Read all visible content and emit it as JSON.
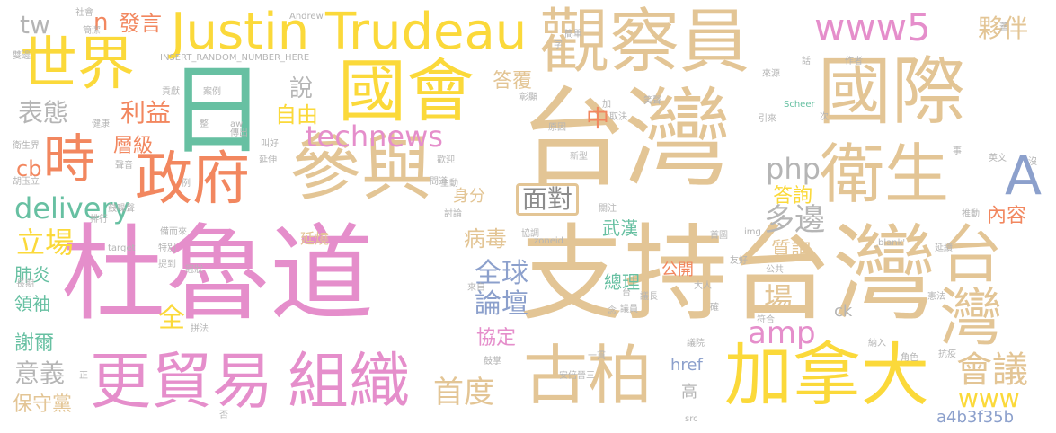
{
  "colors": {
    "pink": "#e58ecb",
    "tan": "#e3c595",
    "yellow": "#fbd93a",
    "green": "#67c0a2",
    "blue": "#8ca0cc",
    "orange": "#f2875f",
    "gray": "#b5b5b5"
  },
  "words": {
    "dulu_dao": "杜魯道",
    "zhichi_taiwan": "支持台灣",
    "taiwan_big": "台灣",
    "taiwan_right": "台灣",
    "guancha_yuan": "觀察員",
    "guoji": "國際",
    "canyu": "參與",
    "weisheng": "衛生",
    "guohui": "國會",
    "shijie": "世界",
    "zhengfu": "政府",
    "shi": "時",
    "ri": "日",
    "justin_trudeau": "Justin Trudeau",
    "www5": "www5",
    "huoban": "夥伴",
    "tw": "tw",
    "n": "n",
    "fayan": "發言",
    "gumao_yi": "更貿易",
    "zuzhi": "組織",
    "gubo": "古柏",
    "jianada": "加拿大",
    "huiyi": "會議",
    "a_big": "A",
    "technews": "technews",
    "delivery": "delivery",
    "php": "php",
    "duobian": "多邊",
    "mianDui": "面對",
    "ziyou": "自由",
    "zhong": "中",
    "shuo": "說",
    "biaotai": "表態",
    "liyi": "利益",
    "cengji": "層級",
    "cb": "cb",
    "lichang": "立場",
    "quanqiu": "全球",
    "luntan": "論壇",
    "shoudu": "首度",
    "amp": "amp",
    "chang": "場",
    "www": "www",
    "neirong": "內容",
    "dafu": "答覆",
    "xunwen": "質詢",
    "daxun": "答詢",
    "gongkai": "公開",
    "zongli": "總理",
    "xieding": "協定",
    "bingdu": "病毒",
    "yanshao": "延燒",
    "shenfen": "身分",
    "wuhan": "武漢",
    "quan": "全",
    "xieer": "謝爾",
    "yiyi": "意義",
    "baoshou_dang": "保守黨",
    "lingxiu": "領袖",
    "feiyan": "肺炎",
    "href": "href",
    "gao": "高",
    "ck": "ck",
    "a4b3f35b": "a4b3f35b",
    "insert_random": "INSERT_RANDOM_NUMBER_HERE",
    "andrew": "Andrew",
    "scheer": "Scheer",
    "target": "target",
    "zoneid": "zoneid",
    "blank": "_blank'",
    "src": "src",
    "img": "img",
    "aw": "aw",
    "hu_yuli": "胡玉立",
    "shuangbian": "雙邊",
    "weishengjie": "衛生界",
    "jiankang": "健康",
    "gongxian": "貢獻",
    "anli": "案例",
    "zheng": "整",
    "chuchu": "傳出",
    "jiaohao": "叫好",
    "shengyin": "聲音",
    "lihan": "例",
    "yanshen": "延伸",
    "paihang": "排行",
    "guzao_sheng": "鼓噪聲",
    "beierlai": "備而來",
    "tebie": "特別",
    "tidao": "提到",
    "guanzhuang": "冠狀",
    "zhangqi": "長期",
    "pinfa": "拼法",
    "zheng2": "正",
    "fou": "否",
    "zhangsheng": "鼓掌",
    "huanying": "歡迎",
    "zhudong": "主動",
    "taolun": "討論",
    "xieyao": "協調",
    "jianwen": "問道",
    "yiguan": "一貫",
    "anxin_shanyi": "安倍晉三",
    "guanzhu": "關注",
    "yihui_yuan": "議員",
    "nian": "念",
    "tai": "台",
    "yizhang": "議長",
    "daren": "大人",
    "yiyan": "議院",
    "queren": "確",
    "quecheng": "首圖",
    "youhao": "友好",
    "gonggong": "公共",
    "fuhe": "符合",
    "jiaose": "角色",
    "kangyi": "抗疫",
    "jiaru": "納入",
    "xianfa": "憲法",
    "yanxu": "延續",
    "tuidong": "推動",
    "moshi": "沒",
    "yingwen": "英文",
    "shiji": "事",
    "yinlai": "引來",
    "ci": "次",
    "laiyuan": "來源",
    "zuozhe": "作者",
    "hua": "話",
    "gai": "蓋",
    "guanzhu2": "關",
    "shuju": "數",
    "jianban": "簡單",
    "jiaru2": "加",
    "qujue": "取決",
    "xinxing": "新型",
    "yuanyin": "原因",
    "biaoxiang": "彰顯",
    "shehui": "社會",
    "jianjie": "簡潔",
    "zi": "字",
    "yanxiang": "笑聲",
    "laizi": "來自",
    "shuiwu": "雙邊"
  }
}
